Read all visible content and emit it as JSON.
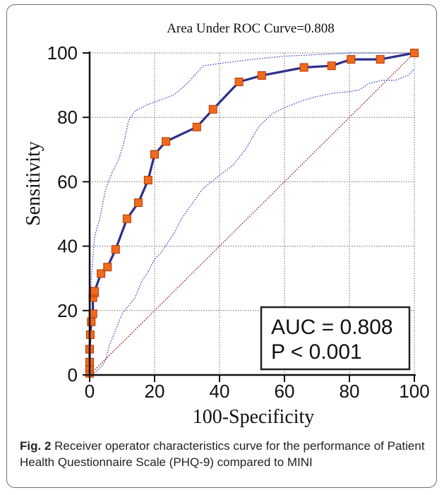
{
  "chart_data": {
    "type": "line",
    "title": "Area Under ROC Curve=0.808",
    "xlabel": "100-Specificity",
    "ylabel": "Sensitivity",
    "xlim": [
      0,
      100
    ],
    "ylim": [
      0,
      100
    ],
    "x_ticks": [
      "0",
      "20",
      "40",
      "60",
      "80",
      "100"
    ],
    "y_ticks": [
      "0",
      "20",
      "40",
      "60",
      "80",
      "100"
    ],
    "grid": true,
    "series": [
      {
        "role": "roc-curve",
        "color": "#2e2e8a",
        "marker_color": "#f06a1e",
        "x": [
          0,
          0,
          0,
          0,
          0.2,
          0.5,
          1,
          1,
          1.5,
          1.5,
          3.5,
          5.5,
          8,
          11.5,
          15,
          18,
          20,
          23.5,
          33,
          38,
          46,
          53,
          66,
          74.5,
          80.5,
          89.5,
          100
        ],
        "y": [
          0.5,
          2.5,
          4,
          8,
          12.5,
          16.5,
          19,
          24,
          25.5,
          26,
          31.5,
          33.5,
          39,
          48.5,
          53.5,
          60.5,
          68.5,
          72.5,
          77,
          82.5,
          91,
          93,
          95.5,
          96,
          98,
          98,
          100
        ]
      },
      {
        "role": "upper-confidence-bound",
        "color": "#3a3abf",
        "x": [
          0,
          0.5,
          1.5,
          3,
          5,
          7,
          9,
          10.5,
          12,
          14,
          18,
          22,
          26,
          30,
          35,
          42,
          50,
          60,
          70,
          80,
          90,
          100
        ],
        "y": [
          5,
          30,
          43,
          48,
          58,
          63,
          67,
          72,
          79,
          82,
          84,
          85.5,
          87,
          90.5,
          96,
          97,
          98,
          99,
          99.5,
          100,
          100,
          100
        ]
      },
      {
        "role": "lower-confidence-bound",
        "color": "#3a3abf",
        "x": [
          0,
          1,
          2,
          3,
          4,
          5,
          6,
          8,
          10,
          12,
          14,
          16,
          18,
          20,
          22,
          24,
          26,
          28,
          30,
          35,
          40,
          44,
          48,
          52,
          56,
          60,
          65,
          70,
          75,
          80,
          83,
          86,
          90,
          94,
          98,
          100
        ],
        "y": [
          0,
          0.5,
          1,
          2,
          3,
          5,
          9,
          14,
          19,
          21.5,
          24,
          29,
          32,
          36,
          38,
          41,
          44,
          48,
          51,
          58,
          62,
          65,
          70,
          77,
          81,
          83,
          85,
          86.5,
          87.5,
          88,
          88.5,
          90.5,
          91.5,
          91.5,
          93,
          95
        ]
      },
      {
        "role": "reference-line",
        "color": "#8b1a1a",
        "x": [
          0,
          100
        ],
        "y": [
          0,
          100
        ]
      }
    ],
    "annotation": {
      "line1": "AUC = 0.808",
      "line2": "P < 0.001"
    }
  },
  "caption": {
    "fig_label": "Fig. 2",
    "text": "Receiver operator characteristics curve for the performance of Patient Health Questionnaire Scale (PHQ-9) compared to MINI"
  }
}
